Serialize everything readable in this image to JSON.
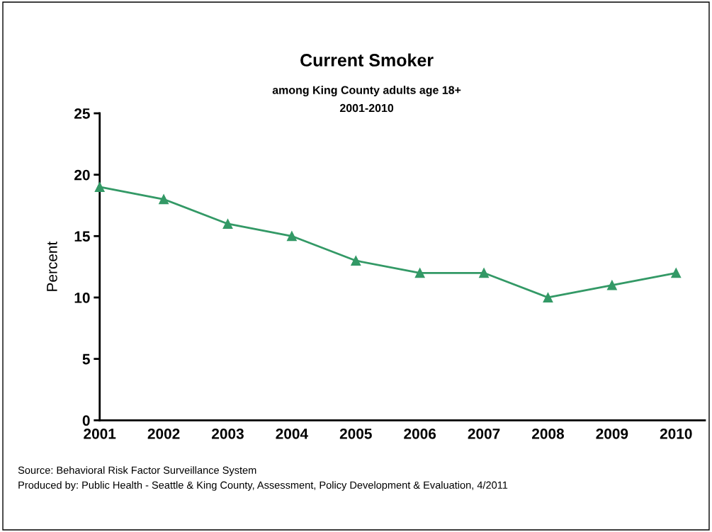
{
  "chart_data": {
    "type": "line",
    "title": "Current Smoker",
    "subtitle": "among King County adults age 18+\n2001-2010",
    "ylabel": "Percent",
    "categories": [
      "2001",
      "2002",
      "2003",
      "2004",
      "2005",
      "2006",
      "2007",
      "2008",
      "2009",
      "2010"
    ],
    "series": [
      {
        "color": "#339966",
        "values": [
          19,
          18,
          16,
          15,
          13,
          12,
          12,
          10,
          11,
          12
        ]
      }
    ],
    "ylim": [
      0,
      25
    ],
    "yticks": [
      0,
      5,
      10,
      15,
      20,
      25
    ],
    "grid": false,
    "legend": false,
    "marker": "triangle",
    "line_style": "solid",
    "annotations": [
      "Source: Behavioral Risk Factor Surveillance System",
      "Produced by: Public Health - Seattle & King County, Assessment, Policy Development & Evaluation, 4/2011"
    ]
  }
}
